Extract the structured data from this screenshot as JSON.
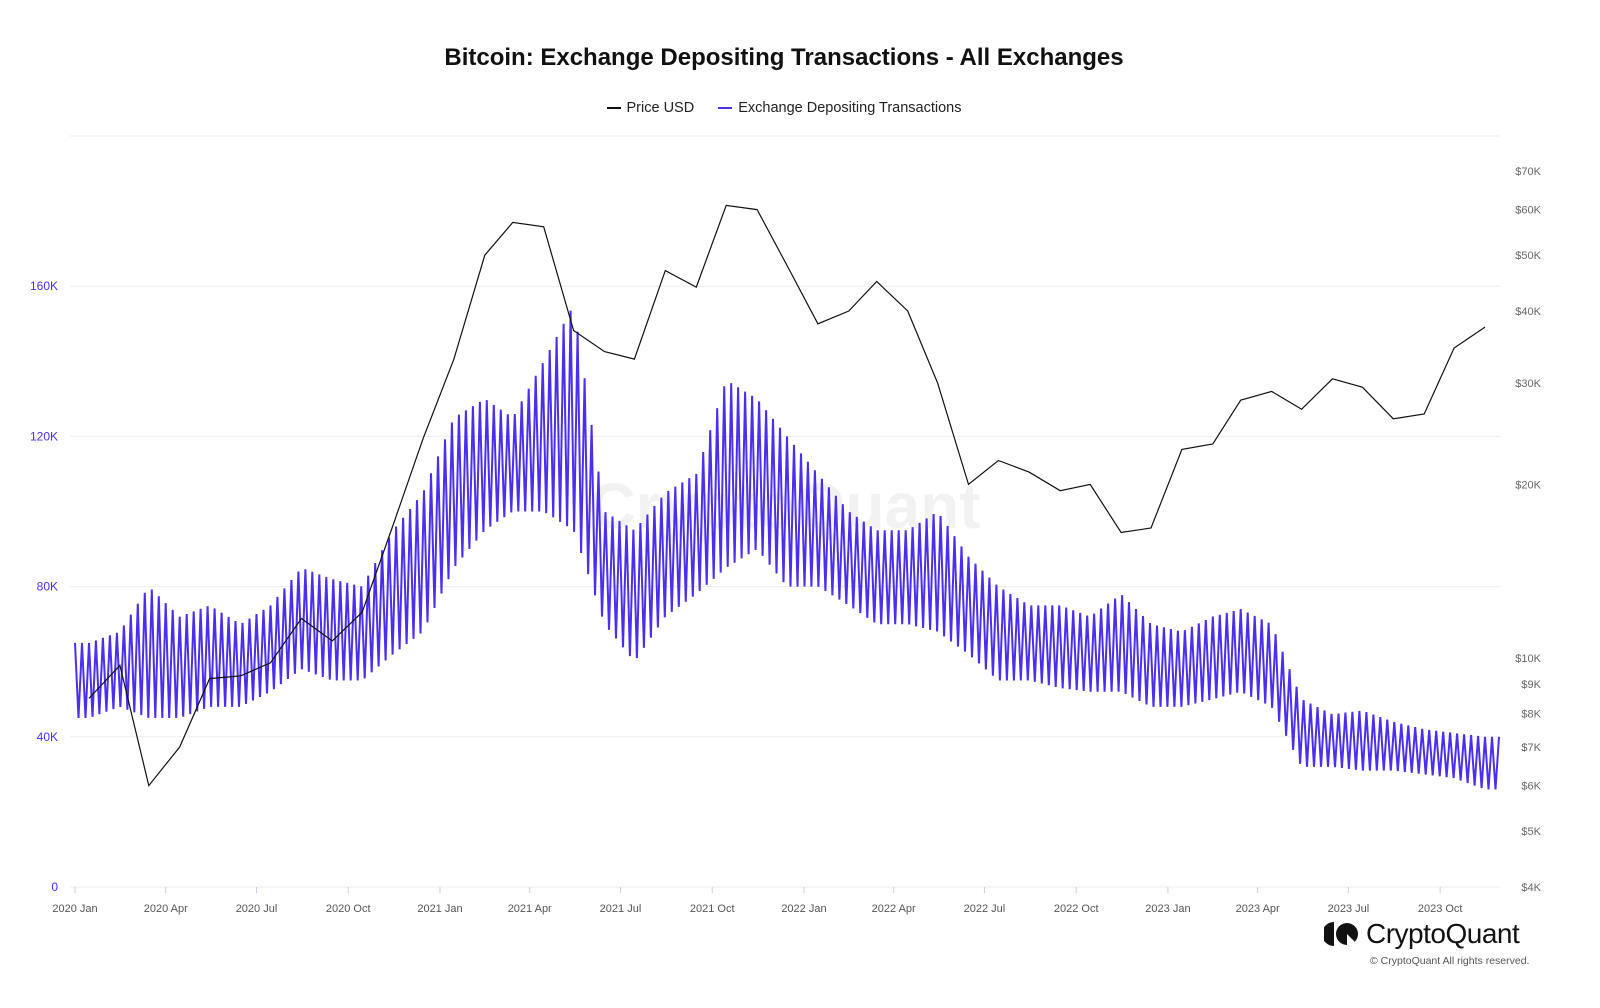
{
  "chart_data": {
    "type": "line",
    "title": "Bitcoin: Exchange Depositing Transactions - All Exchanges",
    "legend": [
      "Price USD",
      "Exchange Depositing Transactions"
    ],
    "legend_placement": "top-center",
    "colors": {
      "price": "#111111",
      "deposits": "#4b2ff0",
      "left_axis": "#4b2ff0",
      "right_axis": "#666666",
      "grid": "#ececf2"
    },
    "grid": true,
    "x_ticks": [
      "2020 Jan",
      "2020 Apr",
      "2020 Jul",
      "2020 Oct",
      "2021 Jan",
      "2021 Apr",
      "2021 Jul",
      "2021 Oct",
      "2022 Jan",
      "2022 Apr",
      "2022 Jul",
      "2022 Oct",
      "2023 Jan",
      "2023 Apr",
      "2023 Jul",
      "2023 Oct"
    ],
    "x_tick_dates": [
      "2020-01-01",
      "2020-04-01",
      "2020-07-01",
      "2020-10-01",
      "2021-01-01",
      "2021-04-01",
      "2021-07-01",
      "2021-10-01",
      "2022-01-01",
      "2022-04-01",
      "2022-07-01",
      "2022-10-01",
      "2023-01-01",
      "2023-04-01",
      "2023-07-01",
      "2023-10-01"
    ],
    "xlim": [
      "2020-01-01",
      "2023-11-30"
    ],
    "left_axis": {
      "scale": "linear",
      "ylim": [
        0,
        200000
      ],
      "ticks": [
        0,
        40000,
        80000,
        120000,
        160000
      ],
      "tick_labels": [
        "0",
        "40K",
        "80K",
        "120K",
        "160K"
      ]
    },
    "right_axis": {
      "scale": "log",
      "ylim": [
        4000,
        70000
      ],
      "ticks": [
        4000,
        5000,
        6000,
        7000,
        8000,
        9000,
        10000,
        20000,
        30000,
        40000,
        50000,
        60000,
        70000
      ],
      "tick_labels": [
        "$4K",
        "$5K",
        "$6K",
        "$7K",
        "$8K",
        "$9K",
        "$10K",
        "$20K",
        "$30K",
        "$40K",
        "$50K",
        "$60K",
        "$70K"
      ]
    },
    "months": [
      "2020-01",
      "2020-02",
      "2020-03",
      "2020-04",
      "2020-05",
      "2020-06",
      "2020-07",
      "2020-08",
      "2020-09",
      "2020-10",
      "2020-11",
      "2020-12",
      "2021-01",
      "2021-02",
      "2021-03",
      "2021-04",
      "2021-05",
      "2021-06",
      "2021-07",
      "2021-08",
      "2021-09",
      "2021-10",
      "2021-11",
      "2021-12",
      "2022-01",
      "2022-02",
      "2022-03",
      "2022-04",
      "2022-05",
      "2022-06",
      "2022-07",
      "2022-08",
      "2022-09",
      "2022-10",
      "2022-11",
      "2022-12",
      "2023-01",
      "2023-02",
      "2023-03",
      "2023-04",
      "2023-05",
      "2023-06",
      "2023-07",
      "2023-08",
      "2023-09",
      "2023-10",
      "2023-11"
    ],
    "series": [
      {
        "name": "Price USD",
        "axis": "right",
        "values": [
          8500,
          9700,
          6000,
          7000,
          9200,
          9300,
          9800,
          11700,
          10700,
          12000,
          17000,
          24000,
          33000,
          50000,
          57000,
          56000,
          37000,
          34000,
          33000,
          47000,
          44000,
          61000,
          60000,
          48000,
          38000,
          40000,
          45000,
          40000,
          30000,
          20000,
          22000,
          21000,
          19500,
          20000,
          16500,
          16800,
          23000,
          23500,
          28000,
          29000,
          27000,
          30500,
          29500,
          26000,
          26500,
          34500,
          37500
        ]
      },
      {
        "name": "Exchange Depositing Transactions",
        "axis": "left",
        "weekday_high": [
          65000,
          68000,
          80000,
          72000,
          75000,
          70000,
          75000,
          85000,
          82000,
          80000,
          95000,
          105000,
          125000,
          130000,
          125000,
          140000,
          155000,
          100000,
          95000,
          105000,
          110000,
          135000,
          130000,
          120000,
          110000,
          100000,
          95000,
          95000,
          100000,
          88000,
          80000,
          75000,
          75000,
          72000,
          78000,
          70000,
          68000,
          72000,
          74000,
          70000,
          50000,
          46000,
          47000,
          44000,
          42000,
          41000,
          40000
        ],
        "weekend_low": [
          45000,
          48000,
          45000,
          45000,
          48000,
          48000,
          52000,
          58000,
          55000,
          55000,
          62000,
          68000,
          85000,
          95000,
          100000,
          100000,
          95000,
          70000,
          60000,
          72000,
          78000,
          85000,
          90000,
          80000,
          80000,
          75000,
          70000,
          70000,
          68000,
          62000,
          55000,
          55000,
          53000,
          52000,
          52000,
          48000,
          48000,
          50000,
          52000,
          48000,
          32000,
          32000,
          31000,
          31000,
          30000,
          29000,
          26000
        ]
      }
    ]
  },
  "watermark": "CryptoQuant",
  "footer": {
    "logo": "CryptoQuant",
    "copyright": "© CryptoQuant All rights reserved."
  }
}
